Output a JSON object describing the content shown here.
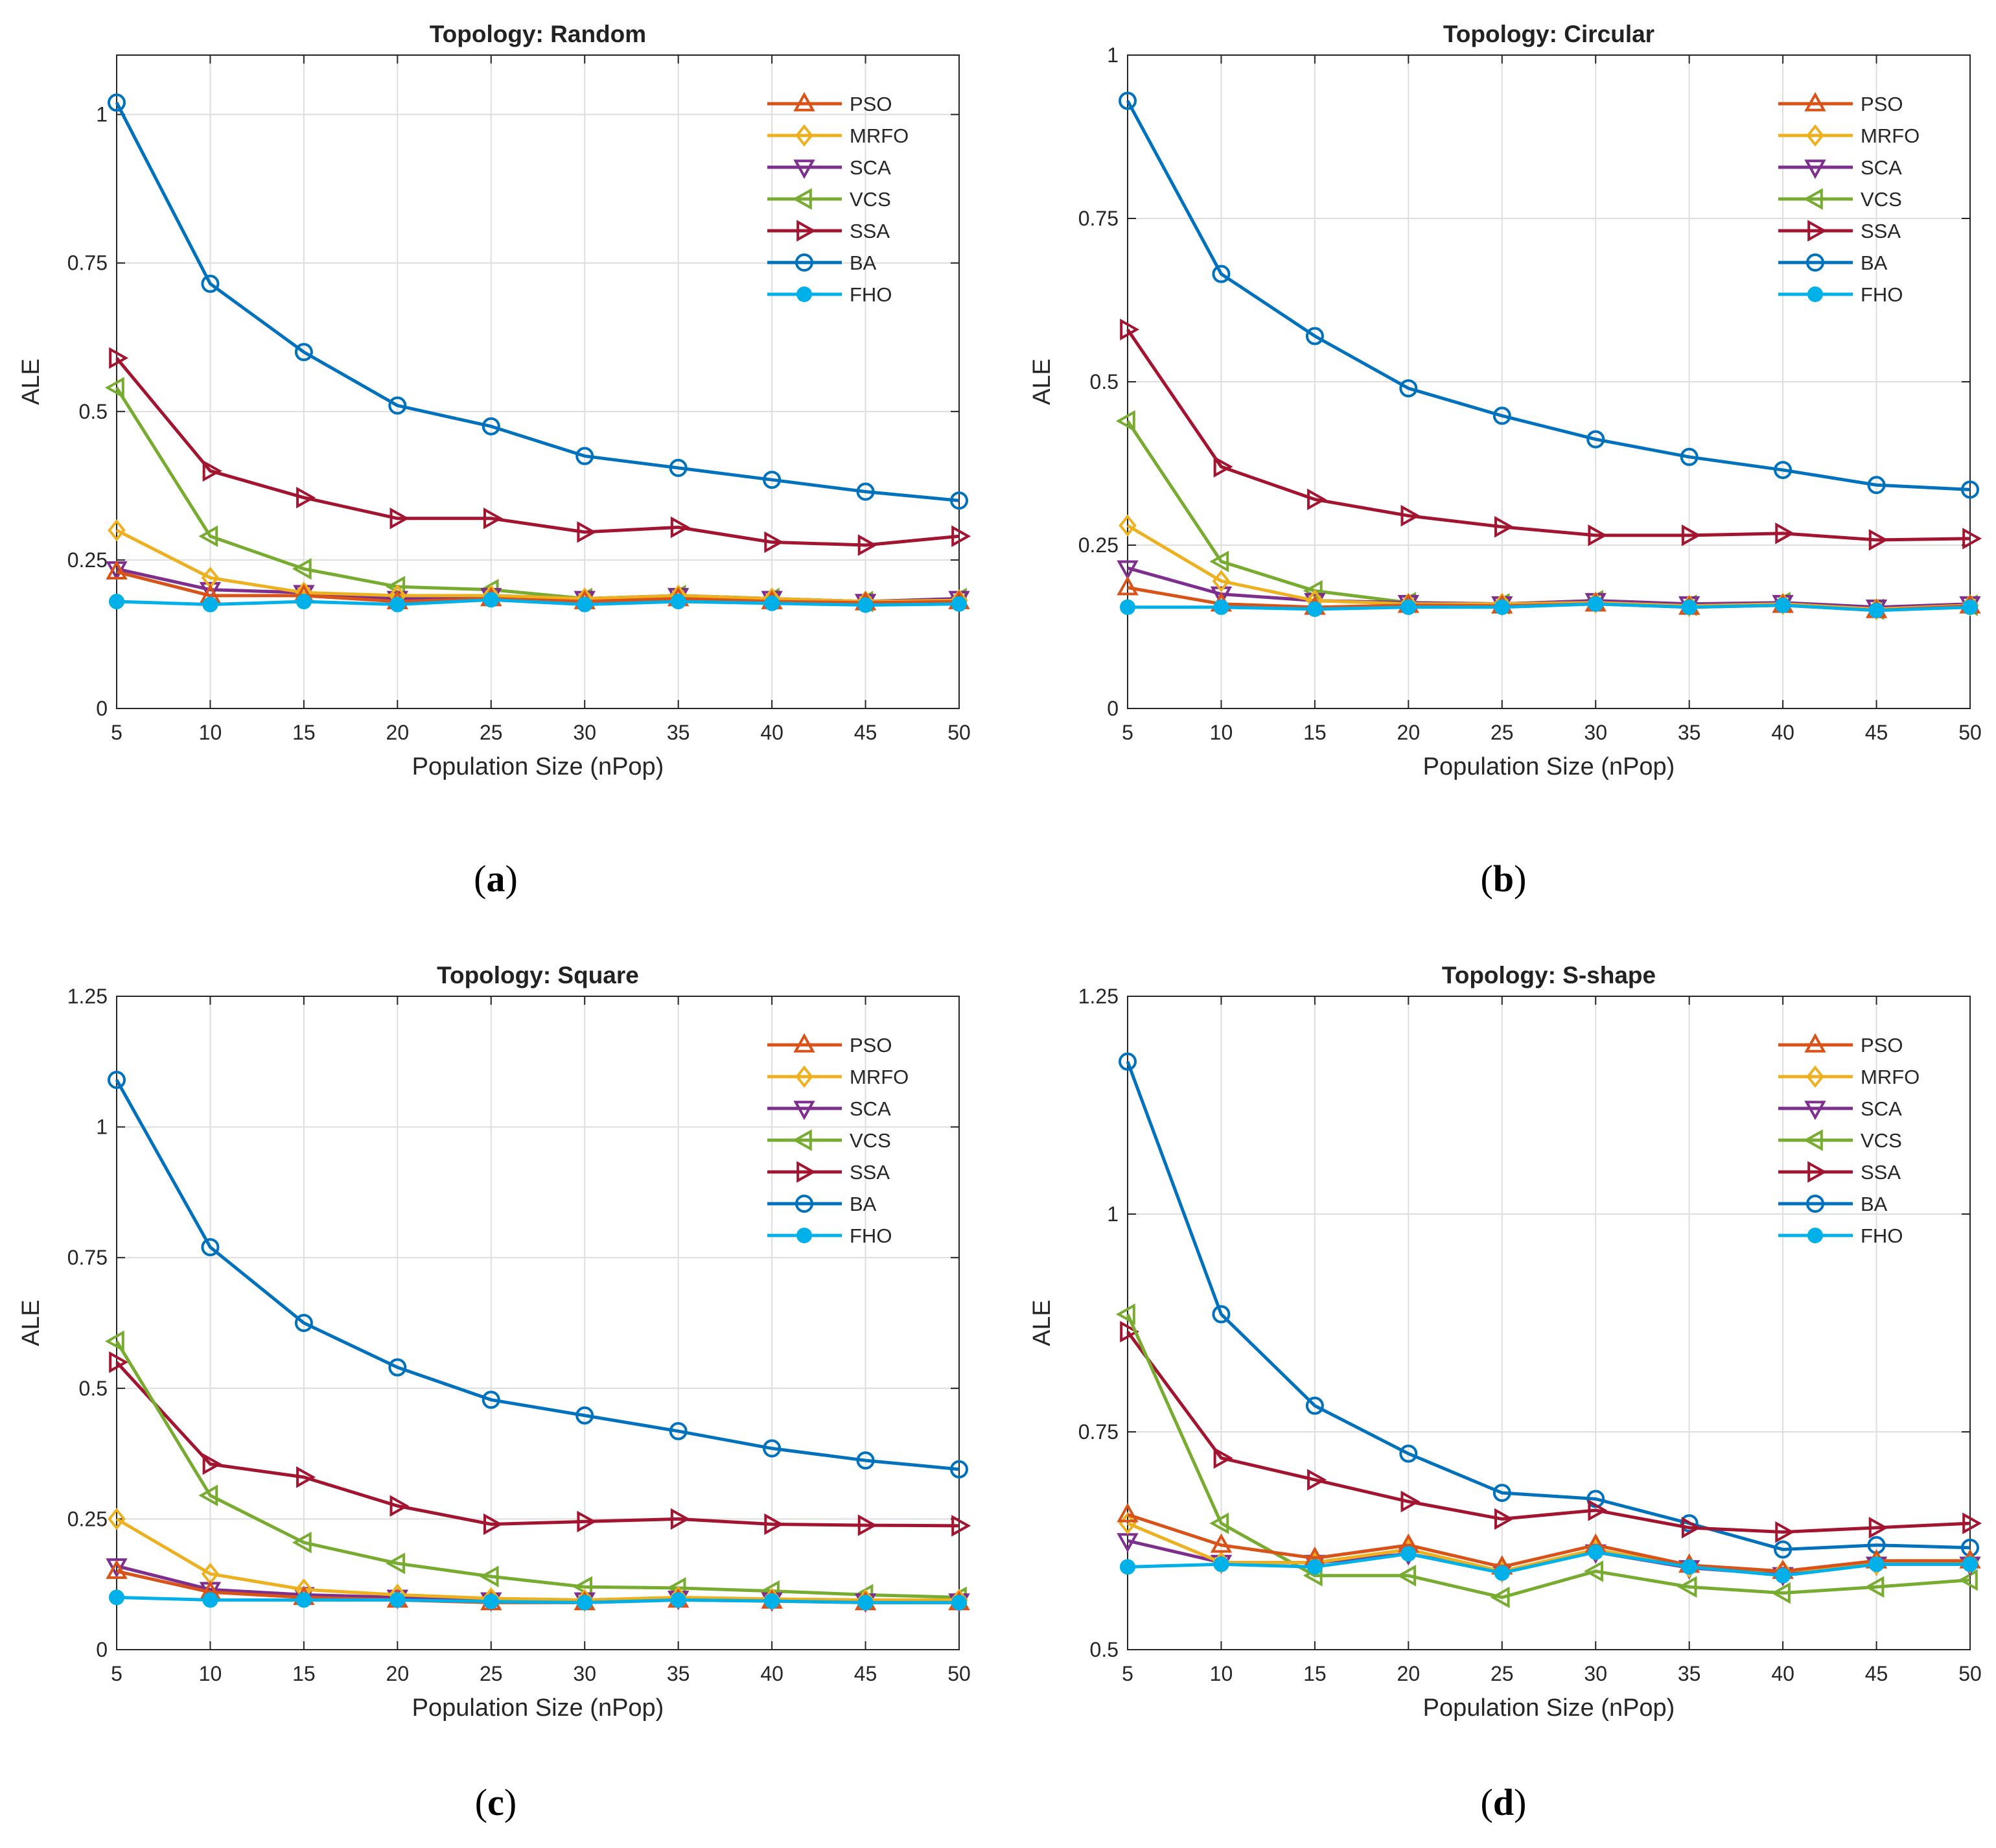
{
  "captions": [
    "(a)",
    "(b)",
    "(c)",
    "(d)"
  ],
  "styles": {
    "PSO": {
      "color": "#D95319",
      "marker": "triangle-up"
    },
    "MRFO": {
      "color": "#EDB120",
      "marker": "diamond"
    },
    "SCA": {
      "color": "#7E2F8E",
      "marker": "triangle-down"
    },
    "VCS": {
      "color": "#77AC30",
      "marker": "triangle-left"
    },
    "SSA": {
      "color": "#A2142F",
      "marker": "triangle-right"
    },
    "BA": {
      "color": "#0072BD",
      "marker": "circle"
    },
    "FHO": {
      "color": "#00B0E8",
      "marker": "filled-circle"
    }
  },
  "chart_data": [
    {
      "type": "line",
      "title": "Topology: Random",
      "xlabel": "Population Size (nPop)",
      "ylabel": "ALE",
      "x": [
        5,
        10,
        15,
        20,
        25,
        30,
        35,
        40,
        45,
        50
      ],
      "xticks": [
        "5",
        "10",
        "15",
        "20",
        "25",
        "30",
        "35",
        "40",
        "45",
        "50"
      ],
      "ylim": [
        0,
        1.1
      ],
      "yticks": [
        0,
        0.25,
        0.5,
        0.75,
        1
      ],
      "ytick_labels": [
        "0",
        "0.25",
        "0.5",
        "0.75",
        "1"
      ],
      "grid": true,
      "legend_position": "top-right",
      "series": [
        {
          "name": "PSO",
          "values": [
            0.23,
            0.19,
            0.19,
            0.18,
            0.185,
            0.18,
            0.185,
            0.18,
            0.178,
            0.18
          ]
        },
        {
          "name": "MRFO",
          "values": [
            0.3,
            0.22,
            0.195,
            0.19,
            0.19,
            0.185,
            0.19,
            0.185,
            0.18,
            0.182
          ]
        },
        {
          "name": "SCA",
          "values": [
            0.235,
            0.2,
            0.195,
            0.185,
            0.19,
            0.185,
            0.19,
            0.185,
            0.18,
            0.185
          ]
        },
        {
          "name": "VCS",
          "values": [
            0.54,
            0.29,
            0.235,
            0.205,
            0.2,
            0.185,
            0.19,
            0.185,
            0.18,
            0.185
          ]
        },
        {
          "name": "SSA",
          "values": [
            0.59,
            0.4,
            0.355,
            0.32,
            0.32,
            0.297,
            0.305,
            0.28,
            0.275,
            0.29
          ]
        },
        {
          "name": "BA",
          "values": [
            1.02,
            0.715,
            0.6,
            0.51,
            0.475,
            0.425,
            0.405,
            0.385,
            0.365,
            0.35
          ]
        },
        {
          "name": "FHO",
          "values": [
            0.18,
            0.175,
            0.18,
            0.175,
            0.183,
            0.175,
            0.18,
            0.177,
            0.174,
            0.176
          ]
        }
      ]
    },
    {
      "type": "line",
      "title": "Topology: Circular",
      "xlabel": "Population Size (nPop)",
      "ylabel": "ALE",
      "x": [
        5,
        10,
        15,
        20,
        25,
        30,
        35,
        40,
        45,
        50
      ],
      "xticks": [
        "5",
        "10",
        "15",
        "20",
        "25",
        "30",
        "35",
        "40",
        "45",
        "50"
      ],
      "ylim": [
        0,
        1
      ],
      "yticks": [
        0,
        0.25,
        0.5,
        0.75,
        1
      ],
      "ytick_labels": [
        "0",
        "0.25",
        "0.5",
        "0.75",
        "1"
      ],
      "grid": true,
      "legend_position": "top-right",
      "series": [
        {
          "name": "PSO",
          "values": [
            0.185,
            0.16,
            0.155,
            0.158,
            0.157,
            0.16,
            0.155,
            0.158,
            0.15,
            0.157
          ]
        },
        {
          "name": "MRFO",
          "values": [
            0.28,
            0.195,
            0.165,
            0.16,
            0.16,
            0.162,
            0.157,
            0.16,
            0.152,
            0.158
          ]
        },
        {
          "name": "SCA",
          "values": [
            0.215,
            0.175,
            0.165,
            0.162,
            0.16,
            0.165,
            0.16,
            0.162,
            0.155,
            0.16
          ]
        },
        {
          "name": "VCS",
          "values": [
            0.44,
            0.225,
            0.18,
            0.162,
            0.16,
            0.165,
            0.158,
            0.162,
            0.152,
            0.158
          ]
        },
        {
          "name": "SSA",
          "values": [
            0.58,
            0.37,
            0.32,
            0.295,
            0.278,
            0.265,
            0.265,
            0.268,
            0.258,
            0.26
          ]
        },
        {
          "name": "BA",
          "values": [
            0.93,
            0.665,
            0.57,
            0.49,
            0.448,
            0.412,
            0.385,
            0.365,
            0.342,
            0.335
          ]
        },
        {
          "name": "FHO",
          "values": [
            0.155,
            0.155,
            0.152,
            0.155,
            0.155,
            0.16,
            0.155,
            0.158,
            0.15,
            0.155
          ]
        }
      ]
    },
    {
      "type": "line",
      "title": "Topology: Square",
      "xlabel": "Population Size (nPop)",
      "ylabel": "ALE",
      "x": [
        5,
        10,
        15,
        20,
        25,
        30,
        35,
        40,
        45,
        50
      ],
      "xticks": [
        "5",
        "10",
        "15",
        "20",
        "25",
        "30",
        "35",
        "40",
        "45",
        "50"
      ],
      "ylim": [
        0,
        1.25
      ],
      "yticks": [
        0,
        0.25,
        0.5,
        0.75,
        1,
        1.25
      ],
      "ytick_labels": [
        "0",
        "0.25",
        "0.5",
        "0.75",
        "1",
        "1.25"
      ],
      "grid": true,
      "legend_position": "top-right",
      "series": [
        {
          "name": "PSO",
          "values": [
            0.15,
            0.11,
            0.1,
            0.095,
            0.09,
            0.09,
            0.095,
            0.093,
            0.09,
            0.09
          ]
        },
        {
          "name": "MRFO",
          "values": [
            0.25,
            0.145,
            0.115,
            0.105,
            0.098,
            0.095,
            0.1,
            0.097,
            0.095,
            0.095
          ]
        },
        {
          "name": "SCA",
          "values": [
            0.16,
            0.115,
            0.105,
            0.1,
            0.095,
            0.095,
            0.098,
            0.095,
            0.093,
            0.093
          ]
        },
        {
          "name": "VCS",
          "values": [
            0.59,
            0.295,
            0.205,
            0.165,
            0.14,
            0.12,
            0.118,
            0.112,
            0.105,
            0.1
          ]
        },
        {
          "name": "SSA",
          "values": [
            0.55,
            0.355,
            0.33,
            0.275,
            0.24,
            0.245,
            0.25,
            0.24,
            0.238,
            0.237
          ]
        },
        {
          "name": "BA",
          "values": [
            1.09,
            0.77,
            0.625,
            0.54,
            0.478,
            0.448,
            0.418,
            0.385,
            0.362,
            0.345
          ]
        },
        {
          "name": "FHO",
          "values": [
            0.1,
            0.095,
            0.095,
            0.095,
            0.092,
            0.09,
            0.095,
            0.093,
            0.09,
            0.09
          ]
        }
      ]
    },
    {
      "type": "line",
      "title": "Topology: S-shape",
      "xlabel": "Population Size (nPop)",
      "ylabel": "ALE",
      "x": [
        5,
        10,
        15,
        20,
        25,
        30,
        35,
        40,
        45,
        50
      ],
      "xticks": [
        "5",
        "10",
        "15",
        "20",
        "25",
        "30",
        "35",
        "40",
        "45",
        "50"
      ],
      "ylim": [
        0.5,
        1.25
      ],
      "yticks": [
        0.5,
        0.75,
        1,
        1.25
      ],
      "ytick_labels": [
        "0.5",
        "0.75",
        "1",
        "1.25"
      ],
      "grid": true,
      "legend_position": "top-right",
      "series": [
        {
          "name": "PSO",
          "values": [
            0.655,
            0.62,
            0.605,
            0.62,
            0.595,
            0.62,
            0.597,
            0.59,
            0.602,
            0.602
          ]
        },
        {
          "name": "MRFO",
          "values": [
            0.645,
            0.6,
            0.6,
            0.615,
            0.59,
            0.615,
            0.595,
            0.59,
            0.598,
            0.6
          ]
        },
        {
          "name": "SCA",
          "values": [
            0.625,
            0.6,
            0.6,
            0.61,
            0.59,
            0.612,
            0.594,
            0.586,
            0.598,
            0.598
          ]
        },
        {
          "name": "VCS",
          "values": [
            0.885,
            0.645,
            0.585,
            0.585,
            0.56,
            0.59,
            0.572,
            0.565,
            0.572,
            0.58
          ]
        },
        {
          "name": "SSA",
          "values": [
            0.865,
            0.72,
            0.695,
            0.67,
            0.65,
            0.66,
            0.64,
            0.635,
            0.64,
            0.645
          ]
        },
        {
          "name": "BA",
          "values": [
            1.175,
            0.885,
            0.78,
            0.725,
            0.68,
            0.673,
            0.645,
            0.615,
            0.62,
            0.617
          ]
        },
        {
          "name": "FHO",
          "values": [
            0.595,
            0.598,
            0.595,
            0.61,
            0.588,
            0.612,
            0.595,
            0.585,
            0.598,
            0.598
          ]
        }
      ]
    }
  ]
}
